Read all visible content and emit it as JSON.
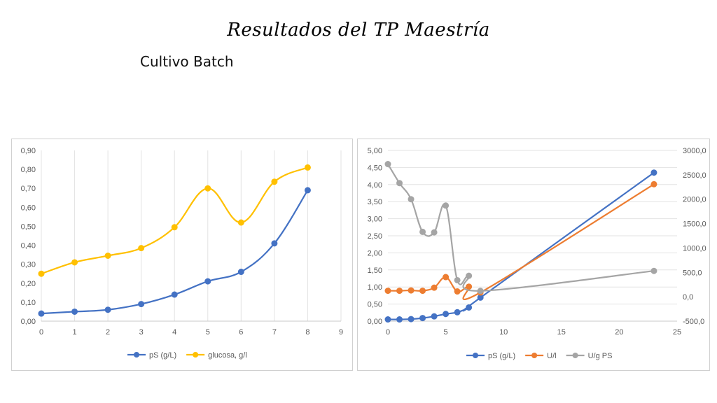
{
  "page": {
    "title": "Resultados del TP Maestría",
    "subtitle": "Cultivo Batch"
  },
  "chart_data": [
    {
      "type": "line",
      "x_ticks": [
        "0",
        "1",
        "2",
        "3",
        "4",
        "5",
        "6",
        "7",
        "8",
        "9"
      ],
      "y_ticks": [
        "0,00",
        "0,10",
        "0,20",
        "0,30",
        "0,40",
        "0,50",
        "0,60",
        "0,70",
        "0,80",
        "0,90"
      ],
      "xlim": [
        0,
        9
      ],
      "ylim": [
        0,
        0.9
      ],
      "grid": "vertical",
      "legend_position": "bottom",
      "series": [
        {
          "name": "pS (g/L)",
          "color": "#4472C4",
          "x": [
            0,
            1,
            2,
            3,
            4,
            5,
            6,
            7,
            8
          ],
          "y": [
            0.04,
            0.05,
            0.06,
            0.09,
            0.14,
            0.21,
            0.26,
            0.41,
            0.69
          ]
        },
        {
          "name": "glucosa, g/l",
          "color": "#FFC000",
          "x": [
            0,
            1,
            2,
            3,
            4,
            5,
            6,
            7,
            8
          ],
          "y": [
            0.25,
            0.31,
            0.345,
            0.385,
            0.495,
            0.7,
            0.52,
            0.735,
            0.81
          ]
        }
      ]
    },
    {
      "type": "line",
      "x_ticks": [
        "0",
        "5",
        "10",
        "15",
        "20",
        "25"
      ],
      "y_ticks": [
        "0,00",
        "0,50",
        "1,00",
        "1,50",
        "2,00",
        "2,50",
        "3,00",
        "3,50",
        "4,00",
        "4,50",
        "5,00"
      ],
      "y2_ticks": [
        "-500,0",
        "0,0",
        "500,0",
        "1000,0",
        "1500,0",
        "2000,0",
        "2500,0",
        "3000,0"
      ],
      "xlim": [
        0,
        25
      ],
      "ylim": [
        0,
        5
      ],
      "y2lim": [
        -500,
        3000
      ],
      "grid": "horizontal",
      "legend_position": "bottom",
      "series": [
        {
          "name": "pS (g/L)",
          "color": "#4472C4",
          "axis": "left",
          "x": [
            0,
            1,
            2,
            3,
            4,
            5,
            6,
            7,
            8,
            23
          ],
          "y": [
            0.05,
            0.05,
            0.06,
            0.09,
            0.14,
            0.21,
            0.26,
            0.4,
            0.69,
            4.35
          ]
        },
        {
          "name": "U/l",
          "color": "#ED7D31",
          "axis": "left",
          "x": [
            0,
            1,
            2,
            3,
            4,
            5,
            6,
            7,
            8,
            23
          ],
          "y": [
            0.89,
            0.89,
            0.9,
            0.89,
            0.98,
            1.29,
            0.87,
            1.01,
            0.84,
            4.01
          ]
        },
        {
          "name": "U/g PS",
          "color": "#A5A5A5",
          "axis": "right",
          "x": [
            0,
            1,
            2,
            3,
            4,
            5,
            6,
            7,
            8,
            23
          ],
          "y": [
            2720,
            2330,
            2000,
            1330,
            1320,
            1870,
            340,
            430,
            120,
            530
          ]
        }
      ]
    }
  ]
}
